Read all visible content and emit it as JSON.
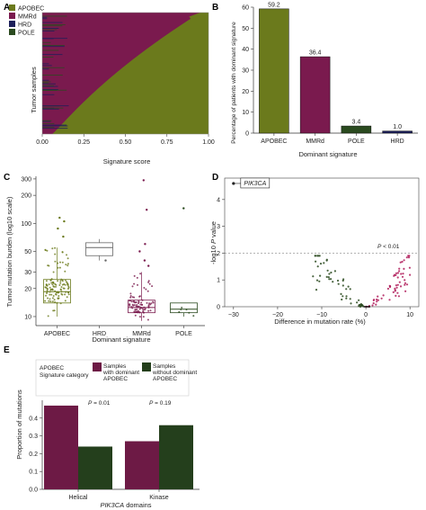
{
  "colors": {
    "apobec": "#6b7a1c",
    "mmrd": "#7a1a4e",
    "hrd": "#1c1f5a",
    "pole": "#2a4a1f",
    "sig": "#b01c5a",
    "grey": "#999999"
  },
  "panels": {
    "A": "A",
    "B": "B",
    "C": "C",
    "D": "D",
    "E": "E"
  },
  "chart_data": [
    {
      "type": "area",
      "panel": "A",
      "ylabel": "Tumor samples",
      "xlabel": "Signature score",
      "xlim": [
        0,
        1
      ],
      "xticks": [
        "0.00",
        "0.25",
        "0.50",
        "0.75",
        "1.00"
      ],
      "legend": [
        {
          "name": "APOBEC",
          "color": "#6b7a1c"
        },
        {
          "name": "MMRd",
          "color": "#7a1a4e"
        },
        {
          "name": "HRD",
          "color": "#1c1f5a"
        },
        {
          "name": "POLE",
          "color": "#2a4a1f"
        }
      ],
      "legend_position": "top-left"
    },
    {
      "type": "bar",
      "panel": "B",
      "categories": [
        "APOBEC",
        "MMRd",
        "POLE",
        "HRD"
      ],
      "values": [
        59.2,
        36.4,
        3.4,
        1.0
      ],
      "value_labels": [
        "59.2",
        "36.4",
        "3.4",
        "1.0"
      ],
      "colors": [
        "#6b7a1c",
        "#7a1a4e",
        "#2a4a1f",
        "#1c1f5a"
      ],
      "xlabel": "Dominant signature",
      "ylabel": "Percentage of patients with dominant signature",
      "ylim": [
        0,
        60
      ],
      "yticks": [
        "0",
        "10",
        "20",
        "30",
        "40",
        "50",
        "60"
      ]
    },
    {
      "type": "scatter",
      "panel": "C",
      "subtype": "box-jitter",
      "categories": [
        "APOBEC",
        "HRD",
        "MMRd",
        "POLE"
      ],
      "xlabel": "Dominant signature",
      "ylabel": "Tumor mutation burden (log10 scale)",
      "ylog": true,
      "ylim": [
        8,
        320
      ],
      "yticks": [
        "10",
        "20",
        "30",
        "50",
        "100",
        "200",
        "300"
      ],
      "boxes": [
        {
          "name": "APOBEC",
          "q1": 14,
          "median": 18.5,
          "q3": 25,
          "lo": 10,
          "hi": 55,
          "color": "#6b7a1c"
        },
        {
          "name": "HRD",
          "q1": 45,
          "median": 55,
          "q3": 62,
          "lo": 40,
          "hi": 68,
          "color": "#666666"
        },
        {
          "name": "MMRd",
          "q1": 11,
          "median": 12.5,
          "q3": 15,
          "lo": 9,
          "hi": 30,
          "color": "#7a1a4e"
        },
        {
          "name": "POLE",
          "q1": 11,
          "median": 12,
          "q3": 14,
          "lo": 10,
          "hi": 14,
          "color": "#2a4a1f"
        }
      ],
      "outliers": [
        {
          "cat": "APOBEC",
          "v": 115
        },
        {
          "cat": "APOBEC",
          "v": 105
        },
        {
          "cat": "APOBEC",
          "v": 88
        },
        {
          "cat": "APOBEC",
          "v": 72
        },
        {
          "cat": "HRD",
          "v": 40
        },
        {
          "cat": "MMRd",
          "v": 290
        },
        {
          "cat": "MMRd",
          "v": 140
        },
        {
          "cat": "MMRd",
          "v": 60
        },
        {
          "cat": "MMRd",
          "v": 50
        },
        {
          "cat": "MMRd",
          "v": 40
        },
        {
          "cat": "MMRd",
          "v": 35
        },
        {
          "cat": "POLE",
          "v": 145
        }
      ]
    },
    {
      "type": "scatter",
      "panel": "D",
      "xlabel": "Difference in mutation rate (%)",
      "ylabel": "-log10 P value",
      "xlim": [
        -32,
        12
      ],
      "ylim": [
        0,
        4.8
      ],
      "xticks": [
        "−30",
        "−20",
        "−10",
        "0",
        "10"
      ],
      "yticks": [
        "0",
        "1",
        "2",
        "3",
        "4"
      ],
      "threshold": 2,
      "threshold_label": "P < 0.01",
      "highlight": {
        "label": "PIK3CA",
        "x": -30,
        "y": 4.6
      }
    },
    {
      "type": "bar",
      "panel": "E",
      "categories": [
        "Helical",
        "Kinase"
      ],
      "series": [
        {
          "name": "Samples with dominant APOBEC",
          "values": [
            0.47,
            0.27
          ],
          "color": "#6d1a45"
        },
        {
          "name": "Samples without dominant APOBEC",
          "values": [
            0.24,
            0.36
          ],
          "color": "#243f1c"
        }
      ],
      "annotations": [
        "P = 0.01",
        "P = 0.19"
      ],
      "legend_title": "APOBEC Signature category",
      "xlabel": "PIK3CA domains",
      "ylabel": "Proportion of mutations",
      "ylim": [
        0,
        0.5
      ],
      "yticks": [
        "0.0",
        "0.1",
        "0.2",
        "0.3",
        "0.4"
      ]
    }
  ],
  "textparts": {
    "p_prefix": "P",
    "p1_value": " = 0.01",
    "p2_value": " = 0.19",
    "thr_value": " < 0.01",
    "logp_prefix": "-log10 ",
    "logp_p": "P",
    "logp_suffix": " value",
    "domains_gene": "PIK3CA",
    "domains_suffix": " domains",
    "legendE_line1": "APOBEC",
    "legendE_line2": "Signature category",
    "legE_s1_l1": "Samples",
    "legE_s1_l2": "with dominant",
    "legE_s1_l3": "APOBEC",
    "legE_s2_l1": "Samples",
    "legE_s2_l2": "without dominant",
    "legE_s2_l3": "APOBEC"
  }
}
